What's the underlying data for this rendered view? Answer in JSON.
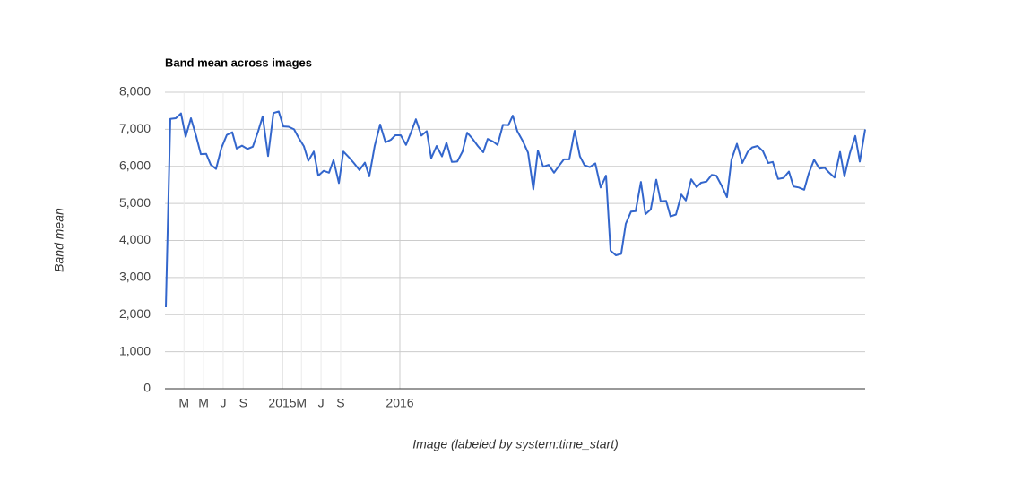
{
  "chart_data": {
    "type": "line",
    "title": "Band mean across images",
    "xlabel": "Image (labeled by system:time_start)",
    "ylabel": "Band mean",
    "x": [
      2014.008,
      2014.046,
      2014.092,
      2014.137,
      2014.176,
      2014.221,
      2014.267,
      2014.305,
      2014.351,
      2014.389,
      2014.435,
      2014.481,
      2014.527,
      2014.573,
      2014.611,
      2014.656,
      2014.702,
      2014.748,
      2014.794,
      2014.832,
      2014.878,
      2014.924,
      2014.969,
      2015.008,
      2015.053,
      2015.099,
      2015.137,
      2015.183,
      2015.221,
      2015.267,
      2015.305,
      2015.351,
      2015.397,
      2015.435,
      2015.481,
      2015.519,
      2015.565,
      2015.611,
      2015.656,
      2015.702,
      2015.74,
      2015.786,
      2015.832,
      2015.878,
      2015.924,
      2015.962,
      2016.008,
      2016.053,
      2016.099,
      2016.137,
      2016.183,
      2016.229,
      2016.267,
      2016.313,
      2016.359,
      2016.397,
      2016.443,
      2016.489,
      2016.534,
      2016.573,
      2016.618,
      2016.664,
      2016.71,
      2016.748,
      2016.794,
      2016.832,
      2016.878,
      2016.924,
      2016.962,
      2017.0,
      2017.046,
      2017.092,
      2017.137,
      2017.176,
      2017.221,
      2017.267,
      2017.313,
      2017.351,
      2017.397,
      2017.443,
      2017.489,
      2017.534,
      2017.573,
      2017.618,
      2017.664,
      2017.71,
      2017.756,
      2017.794,
      2017.84,
      2017.885,
      2017.924,
      2017.969,
      2018.008,
      2018.053,
      2018.092,
      2018.137,
      2018.183,
      2018.221,
      2018.267,
      2018.305,
      2018.351,
      2018.397,
      2018.435,
      2018.481,
      2018.527,
      2018.565,
      2018.611,
      2018.656,
      2018.695,
      2018.74,
      2018.786,
      2018.824,
      2018.87,
      2018.916,
      2018.962,
      2019.0,
      2019.046,
      2019.092,
      2019.137,
      2019.176,
      2019.221,
      2019.267,
      2019.313,
      2019.351,
      2019.397,
      2019.443,
      2019.481,
      2019.527,
      2019.573,
      2019.618,
      2019.656,
      2019.702,
      2019.748,
      2019.786,
      2019.832,
      2019.878,
      2019.916,
      2019.962
    ],
    "series": [
      {
        "name": "Band mean",
        "color": "#3366cc",
        "values": [
          2200,
          7280,
          7300,
          7430,
          6800,
          7300,
          6800,
          6330,
          6340,
          6050,
          5930,
          6500,
          6850,
          6920,
          6480,
          6560,
          6470,
          6530,
          6950,
          7350,
          6280,
          7440,
          7480,
          7080,
          7070,
          7000,
          6780,
          6540,
          6150,
          6400,
          5750,
          5880,
          5830,
          6170,
          5550,
          6400,
          6250,
          6080,
          5900,
          6100,
          5730,
          6560,
          7130,
          6650,
          6720,
          6840,
          6840,
          6580,
          6950,
          7270,
          6830,
          6950,
          6220,
          6550,
          6270,
          6640,
          6120,
          6130,
          6400,
          6910,
          6750,
          6550,
          6380,
          6740,
          6670,
          6580,
          7120,
          7110,
          7370,
          6950,
          6690,
          6370,
          5380,
          6430,
          5990,
          6040,
          5830,
          6000,
          6190,
          6190,
          6960,
          6270,
          6030,
          5980,
          6080,
          5430,
          5750,
          3730,
          3600,
          3640,
          4450,
          4780,
          4790,
          5580,
          4710,
          4840,
          5640,
          5060,
          5070,
          4650,
          4700,
          5240,
          5080,
          5650,
          5440,
          5560,
          5590,
          5770,
          5750,
          5480,
          5170,
          6180,
          6610,
          6090,
          6390,
          6510,
          6550,
          6410,
          6090,
          6120,
          5660,
          5690,
          5860,
          5460,
          5430,
          5370,
          5800,
          6180,
          5940,
          5960,
          5830,
          5700,
          6390,
          5730,
          6360,
          6820,
          6130,
          7000
        ]
      }
    ],
    "xlim": [
      2014,
      2019.962
    ],
    "xticks": [
      {
        "value": 2014.162,
        "label": "M"
      },
      {
        "value": 2014.329,
        "label": "M"
      },
      {
        "value": 2014.496,
        "label": "J"
      },
      {
        "value": 2014.666,
        "label": "S"
      },
      2015,
      {
        "value": 2015.162,
        "label": "M"
      },
      {
        "value": 2015.329,
        "label": "J"
      },
      {
        "value": 2015.496,
        "label": "S"
      },
      2016
    ],
    "ylim": [
      0,
      8000
    ],
    "yticks": [
      {
        "value": 0,
        "label": "0"
      },
      {
        "value": 1000,
        "label": "1,000"
      },
      {
        "value": 2000,
        "label": "2,000"
      },
      {
        "value": 3000,
        "label": "3,000"
      },
      {
        "value": 4000,
        "label": "4,000"
      },
      {
        "value": 5000,
        "label": "5,000"
      },
      {
        "value": 6000,
        "label": "6,000"
      },
      {
        "value": 7000,
        "label": "7,000"
      },
      {
        "value": 8000,
        "label": "8,000"
      }
    ],
    "grid": true
  }
}
